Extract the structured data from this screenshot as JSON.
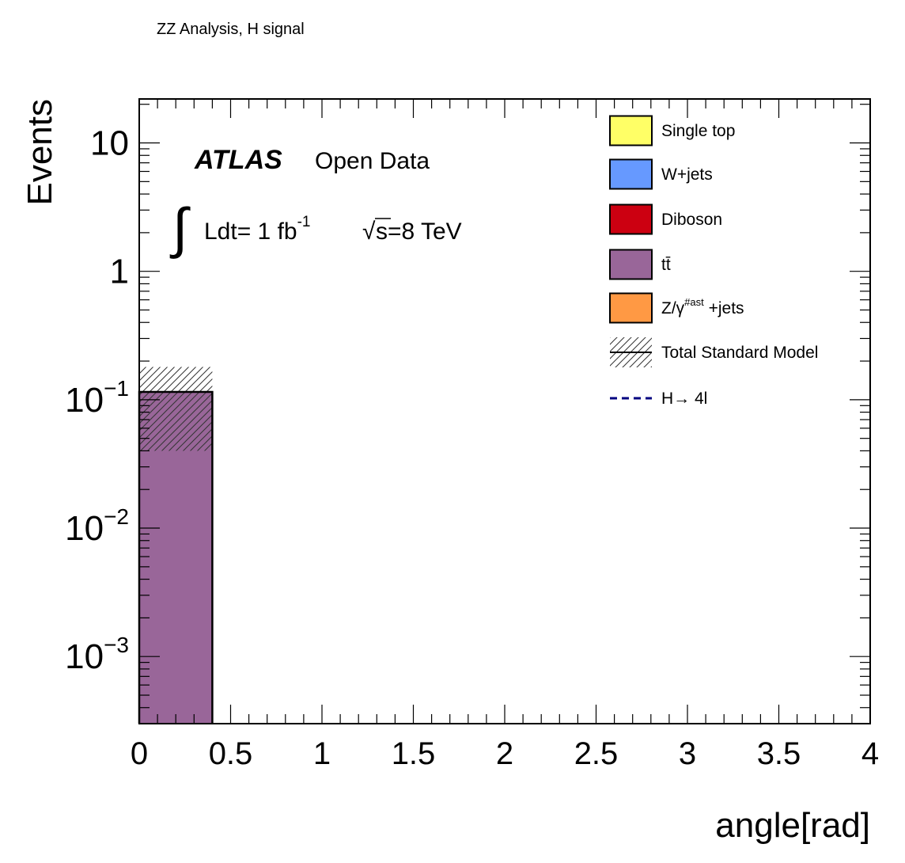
{
  "page_title": "ZZ Analysis, H signal",
  "chart_data": {
    "type": "bar",
    "histogram": "stacked",
    "title": "",
    "xlabel": "angle[rad]",
    "ylabel": "Events",
    "xlim": [
      0,
      4
    ],
    "ylim": [
      0.0003,
      22
    ],
    "yscale": "log",
    "grid": false,
    "x_ticks": [
      "0",
      "0.5",
      "1",
      "1.5",
      "2",
      "2.5",
      "3",
      "3.5",
      "4"
    ],
    "y_ticks": [
      {
        "value": 0.001,
        "base": "10",
        "exp": "−3"
      },
      {
        "value": 0.01,
        "base": "10",
        "exp": "−2"
      },
      {
        "value": 0.1,
        "base": "10",
        "exp": "−1"
      },
      {
        "value": 1,
        "base": "1",
        "exp": ""
      },
      {
        "value": 10,
        "base": "10",
        "exp": ""
      }
    ],
    "bins": [
      [
        0,
        0.4
      ]
    ],
    "series": [
      {
        "name": "Single top",
        "color": "#ffff66",
        "values": [
          0
        ]
      },
      {
        "name": "W+jets",
        "color": "#6699ff",
        "values": [
          0
        ]
      },
      {
        "name": "Diboson",
        "color": "#cc0011",
        "values": [
          0
        ]
      },
      {
        "name": "tt̄",
        "color": "#996699",
        "values": [
          0.115
        ]
      },
      {
        "name": "Z/γ",
        "name_sup": "#ast",
        "name_suffix": " +jets",
        "color": "#ff9944",
        "values": [
          0
        ]
      }
    ],
    "total_sm": {
      "name": "Total Standard Model",
      "values": [
        0.115
      ],
      "unc_low": [
        0.04
      ],
      "unc_high": [
        0.18
      ]
    },
    "signal": {
      "name": "H→ 4l",
      "color": "#000080",
      "values": [
        0
      ]
    },
    "legend_position": "top-right",
    "annotations": {
      "experiment": "ATLAS",
      "open_data": "Open Data",
      "integral": "∫",
      "lumi_text": "Ldt= 1 fb",
      "lumi_sup": "-1",
      "sqrt": "√",
      "energy_text": "s=8 TeV"
    }
  }
}
